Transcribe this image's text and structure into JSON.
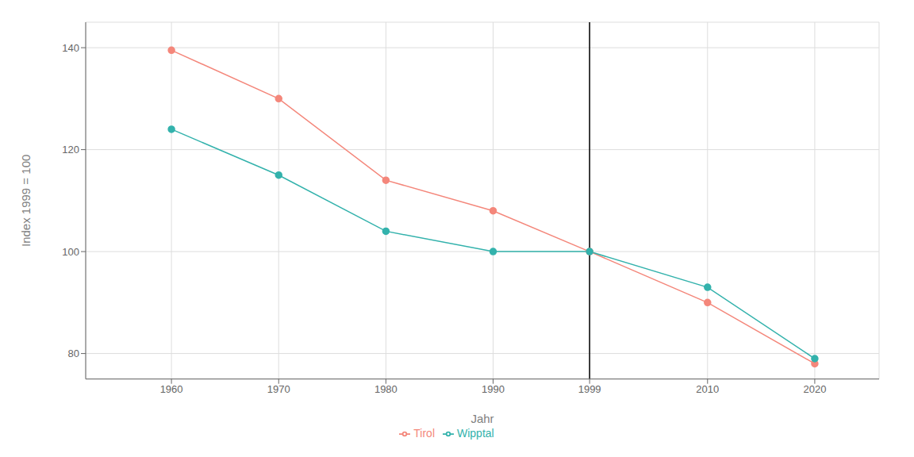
{
  "chart_data": {
    "type": "line",
    "xlabel": "Jahr",
    "ylabel": "Index 1999 = 100",
    "x": [
      1960,
      1970,
      1980,
      1990,
      1999,
      2010,
      2020
    ],
    "series": [
      {
        "name": "Tirol",
        "color": "#F4877B",
        "values": [
          139.5,
          130.0,
          114.0,
          108.0,
          100.0,
          90.0,
          78.0
        ]
      },
      {
        "name": "Wipptal",
        "color": "#33B2AC",
        "values": [
          124.0,
          115.0,
          104.0,
          100.0,
          100.0,
          93.0,
          79.0
        ]
      }
    ],
    "vline": 1999,
    "xlim": [
      1952,
      2026
    ],
    "xticks": [
      1960,
      1970,
      1980,
      1990,
      1999,
      2010,
      2020
    ],
    "ylim": [
      75,
      145
    ],
    "yticks": [
      80,
      100,
      120,
      140
    ],
    "grid": true,
    "legend": "bottom",
    "marker": "circle"
  }
}
